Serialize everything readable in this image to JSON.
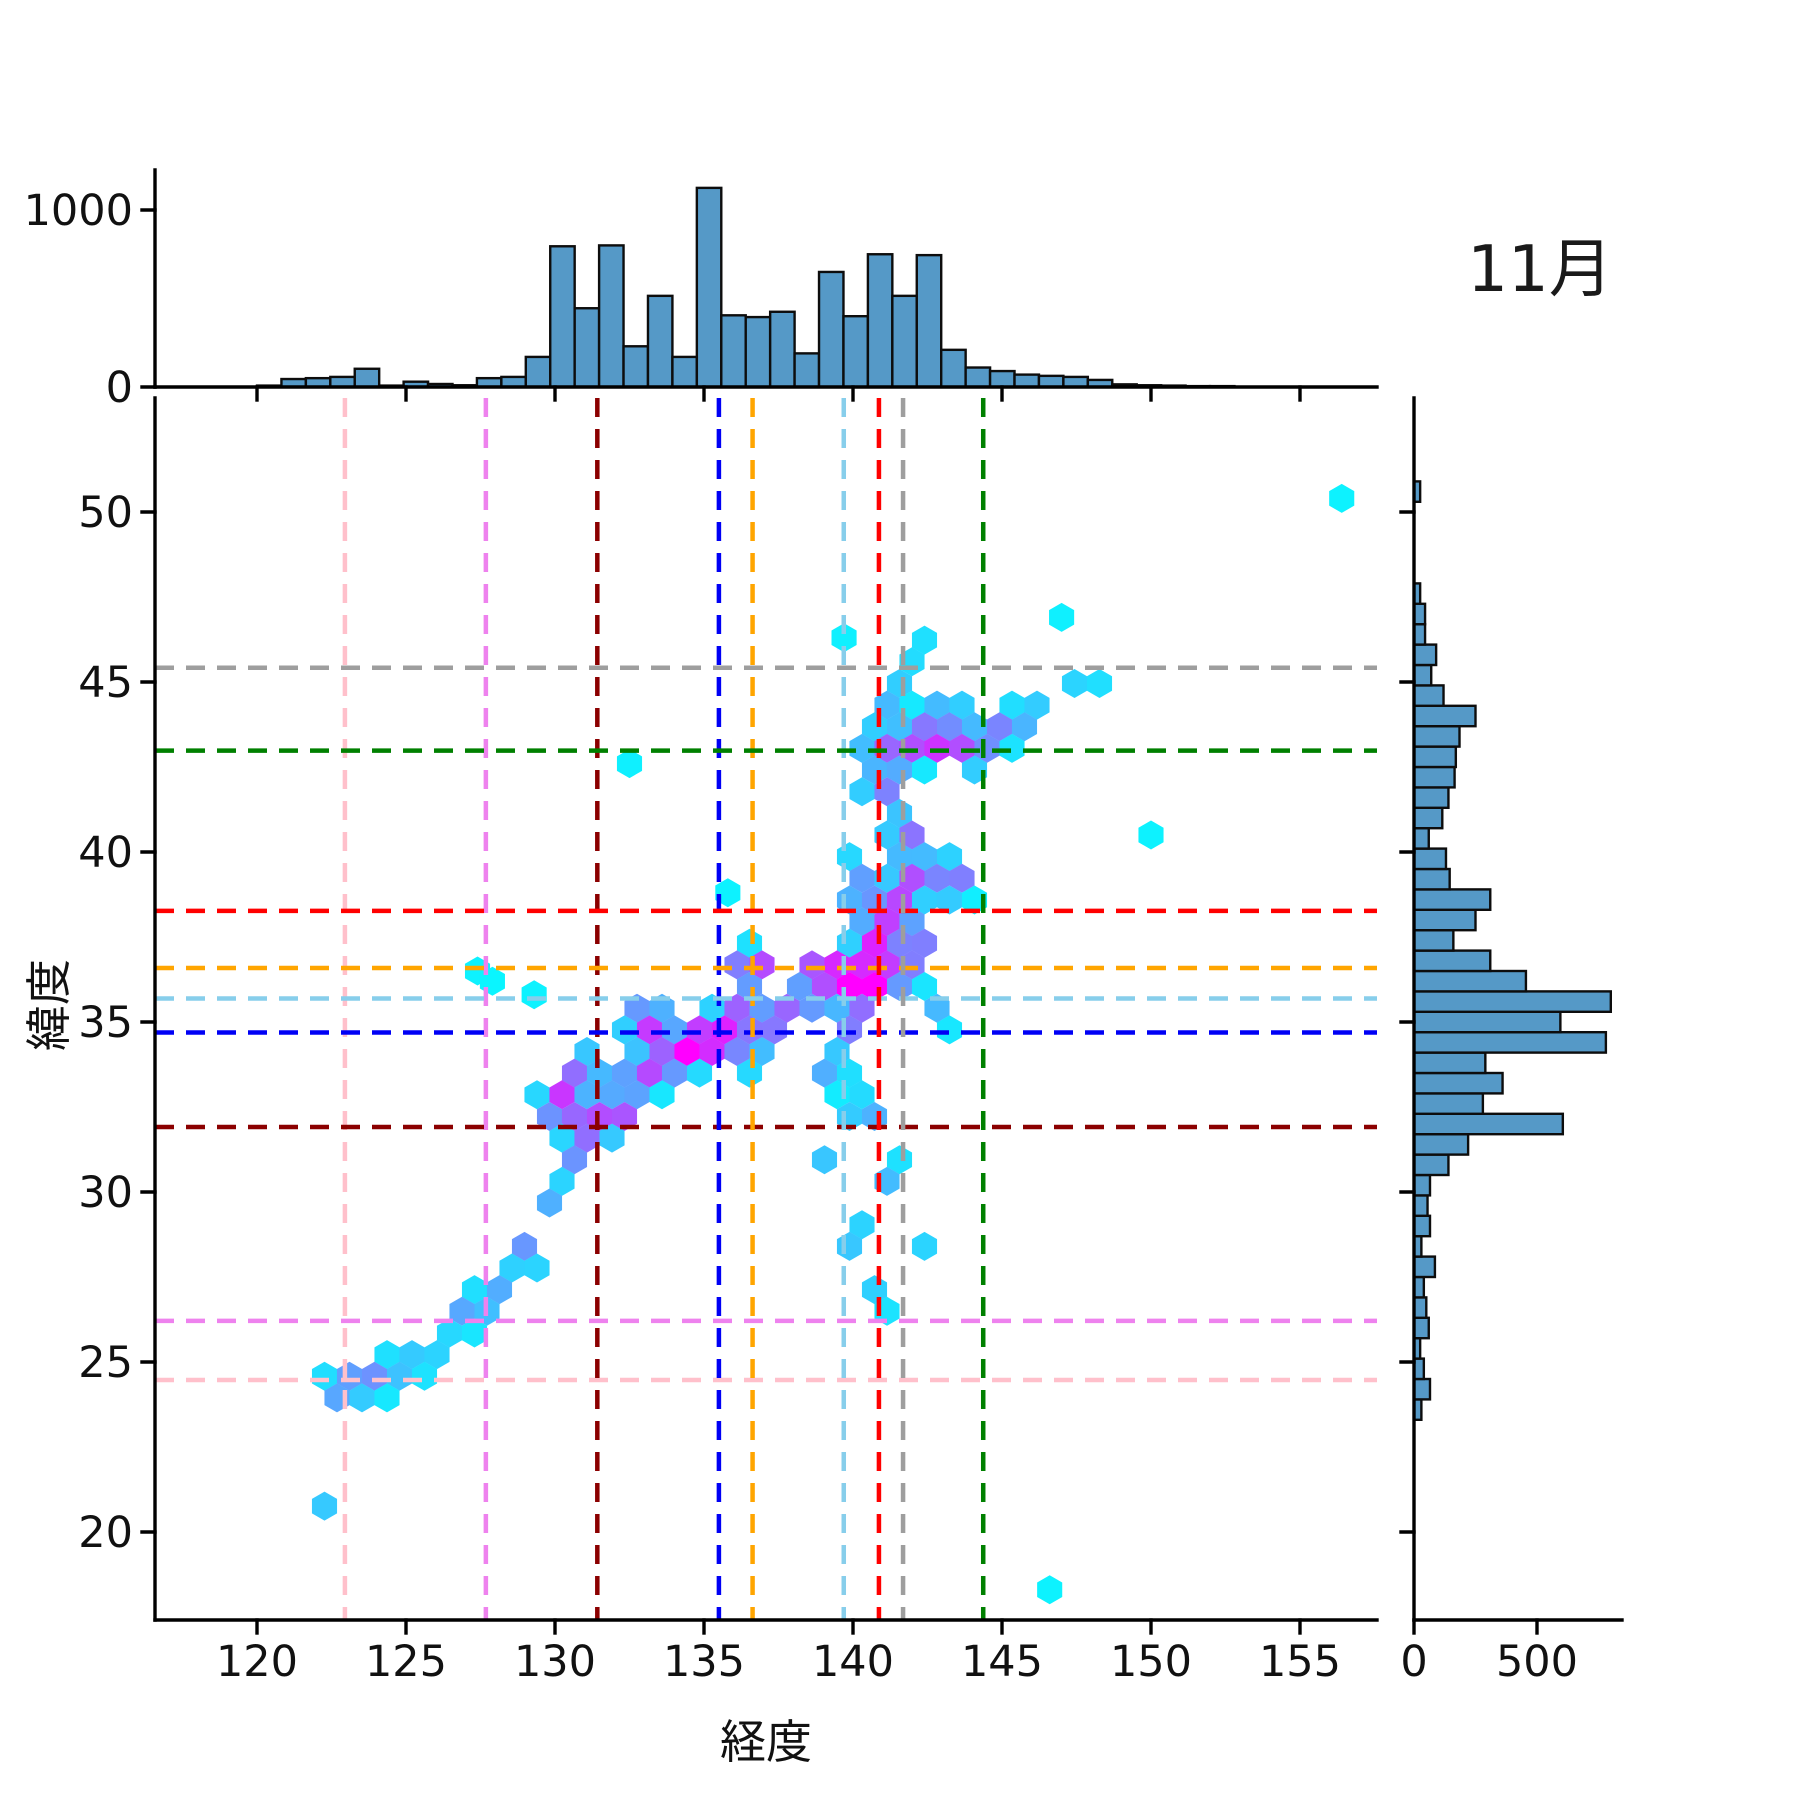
{
  "title": "11月",
  "axes": {
    "xlabel": "経度",
    "ylabel": "緯度",
    "x_ticks": [
      120,
      125,
      130,
      135,
      140,
      145,
      150,
      155
    ],
    "y_ticks": [
      20,
      25,
      30,
      35,
      40,
      45,
      50
    ],
    "top_hist_ticks": [
      0,
      1000
    ],
    "right_hist_ticks": [
      0,
      500
    ]
  },
  "style": {
    "bar_fill": "#5599C7",
    "bar_edge": "#0d0d0d",
    "axis_color": "#000000",
    "tick_label_color": "#111111",
    "colormap": "cool"
  },
  "chart_data": [
    {
      "type": "heatmap",
      "subtype": "hexbin",
      "title": "11月",
      "xlabel": "経度",
      "ylabel": "緯度",
      "xlim": [
        116.6,
        157.6
      ],
      "ylim": [
        17.4,
        53.4
      ],
      "colormap": "cool (cyan=low, magenta=high)",
      "hex_width_deg": 0.84,
      "reference_lines": [
        {
          "color": "#FFC0CB",
          "lon": 122.95,
          "lat": 24.47
        },
        {
          "color": "#EE82EE",
          "lon": 127.68,
          "lat": 26.21
        },
        {
          "color": "#8B0000",
          "lon": 131.42,
          "lat": 31.91
        },
        {
          "color": "#0000F5",
          "lon": 135.5,
          "lat": 34.69
        },
        {
          "color": "#FFA500",
          "lon": 136.63,
          "lat": 36.59
        },
        {
          "color": "#87CEEB",
          "lon": 139.69,
          "lat": 35.69
        },
        {
          "color": "#FF0000",
          "lon": 140.87,
          "lat": 38.27
        },
        {
          "color": "#9E9E9E",
          "lon": 141.68,
          "lat": 45.42
        },
        {
          "color": "#008000",
          "lon": 144.37,
          "lat": 42.98
        }
      ],
      "density_sources": [
        [
          122.2,
          20.8,
          0.55,
          0.5
        ],
        [
          122.9,
          24.25,
          1.15,
          0.5
        ],
        [
          124.2,
          24.6,
          1.0,
          0.5
        ],
        [
          125.6,
          25.1,
          0.7,
          0.5
        ],
        [
          126.8,
          26.3,
          0.85,
          0.5
        ],
        [
          128.0,
          26.9,
          0.9,
          0.5
        ],
        [
          129.0,
          28.2,
          1.05,
          0.5
        ],
        [
          129.9,
          29.7,
          0.75,
          0.5
        ],
        [
          130.5,
          30.9,
          0.95,
          0.45
        ],
        [
          130.2,
          32.6,
          1.9,
          0.5
        ],
        [
          131.1,
          31.8,
          1.3,
          0.45
        ],
        [
          132.0,
          32.3,
          1.9,
          0.45
        ],
        [
          130.9,
          33.6,
          1.3,
          0.5
        ],
        [
          132.9,
          33.4,
          1.6,
          0.5
        ],
        [
          133.1,
          35.0,
          1.85,
          0.5
        ],
        [
          134.0,
          34.0,
          1.5,
          0.5
        ],
        [
          134.8,
          34.3,
          1.9,
          0.45
        ],
        [
          135.5,
          34.7,
          1.6,
          0.5
        ],
        [
          136.3,
          35.3,
          1.3,
          0.45
        ],
        [
          136.6,
          36.6,
          2.1,
          0.45
        ],
        [
          137.6,
          35.2,
          1.2,
          0.45
        ],
        [
          136.2,
          33.9,
          0.8,
          0.5
        ],
        [
          137.0,
          34.6,
          1.0,
          0.4
        ],
        [
          139.4,
          36.4,
          2.0,
          0.5
        ],
        [
          140.2,
          35.8,
          1.7,
          0.45
        ],
        [
          139.8,
          34.8,
          1.1,
          0.45
        ],
        [
          138.4,
          35.6,
          1.0,
          0.45
        ],
        [
          138.5,
          36.6,
          1.0,
          0.45
        ],
        [
          140.6,
          36.3,
          1.7,
          0.45
        ],
        [
          142.8,
          35.2,
          0.75,
          0.5
        ],
        [
          139.2,
          33.6,
          0.8,
          0.55
        ],
        [
          140.4,
          32.3,
          0.9,
          0.5
        ],
        [
          139.0,
          30.8,
          0.6,
          0.55
        ],
        [
          141.2,
          30.5,
          0.7,
          0.55
        ],
        [
          143.4,
          30.1,
          0.5,
          0.5
        ],
        [
          140.0,
          28.7,
          0.7,
          0.55
        ],
        [
          142.2,
          28.2,
          0.55,
          0.5
        ],
        [
          140.9,
          26.9,
          0.6,
          0.5
        ],
        [
          140.8,
          37.2,
          1.8,
          0.5
        ],
        [
          141.3,
          38.3,
          1.9,
          0.5
        ],
        [
          142.0,
          39.3,
          1.4,
          0.5
        ],
        [
          143.4,
          39.2,
          1.25,
          0.55
        ],
        [
          141.8,
          40.6,
          1.3,
          0.5
        ],
        [
          140.1,
          39.4,
          1.0,
          0.45
        ],
        [
          139.9,
          38.3,
          0.8,
          0.45
        ],
        [
          142.3,
          37.3,
          1.1,
          0.5
        ],
        [
          141.7,
          36.4,
          1.2,
          0.45
        ],
        [
          140.9,
          41.9,
          1.3,
          0.45
        ],
        [
          141.5,
          43.0,
          1.5,
          0.5
        ],
        [
          142.7,
          43.3,
          1.9,
          0.5
        ],
        [
          143.9,
          43.0,
          1.4,
          0.5
        ],
        [
          144.9,
          43.6,
          1.0,
          0.5
        ],
        [
          146.0,
          44.0,
          0.7,
          0.5
        ],
        [
          147.2,
          44.8,
          0.5,
          0.45
        ],
        [
          148.2,
          45.2,
          0.45,
          0.4
        ],
        [
          140.4,
          43.3,
          0.7,
          0.45
        ],
        [
          141.3,
          44.4,
          0.7,
          0.45
        ],
        [
          141.8,
          45.3,
          0.6,
          0.4
        ],
        [
          143.2,
          44.4,
          0.8,
          0.45
        ],
        [
          142.3,
          46.4,
          0.42,
          0.4
        ],
        [
          142.7,
          47.3,
          0.42,
          0.4
        ],
        [
          142.5,
          48.2,
          0.38,
          0.38
        ]
      ],
      "single_cells": [
        [
          156.4,
          50.4,
          0.05
        ],
        [
          147.0,
          46.9,
          0.06
        ],
        [
          150.0,
          40.5,
          0.05
        ],
        [
          146.6,
          18.3,
          0.05
        ],
        [
          132.5,
          42.6,
          0.06
        ],
        [
          135.8,
          38.8,
          0.05
        ],
        [
          127.4,
          36.5,
          0.05
        ],
        [
          127.9,
          36.2,
          0.04
        ],
        [
          129.3,
          35.8,
          0.05
        ],
        [
          139.7,
          46.3,
          0.06
        ]
      ]
    },
    {
      "type": "bar",
      "role": "marginal-histogram-x",
      "axis": "経度",
      "bin_start": 120.0,
      "bin_width": 0.82,
      "values": [
        8,
        45,
        50,
        57,
        103,
        8,
        30,
        17,
        10,
        50,
        57,
        170,
        795,
        445,
        800,
        230,
        515,
        170,
        1125,
        405,
        395,
        425,
        190,
        650,
        400,
        750,
        515,
        745,
        210,
        110,
        90,
        70,
        63,
        57,
        40,
        15,
        10,
        8,
        5,
        5
      ],
      "ylim": [
        0,
        1300
      ],
      "y_ticks": [
        0,
        1000
      ]
    },
    {
      "type": "bar",
      "role": "marginal-histogram-y",
      "axis": "緯度",
      "bin_start": 23.3,
      "bin_width": 0.6,
      "values": [
        30,
        65,
        40,
        25,
        60,
        50,
        40,
        85,
        30,
        65,
        55,
        65,
        140,
        220,
        605,
        280,
        360,
        290,
        780,
        595,
        800,
        455,
        310,
        160,
        250,
        310,
        145,
        130,
        60,
        115,
        140,
        165,
        170,
        185,
        250,
        120,
        70,
        90,
        45,
        45,
        25,
        0,
        0,
        0,
        0,
        25
      ],
      "xlim": [
        0,
        1120
      ],
      "x_ticks": [
        0,
        500
      ]
    }
  ]
}
